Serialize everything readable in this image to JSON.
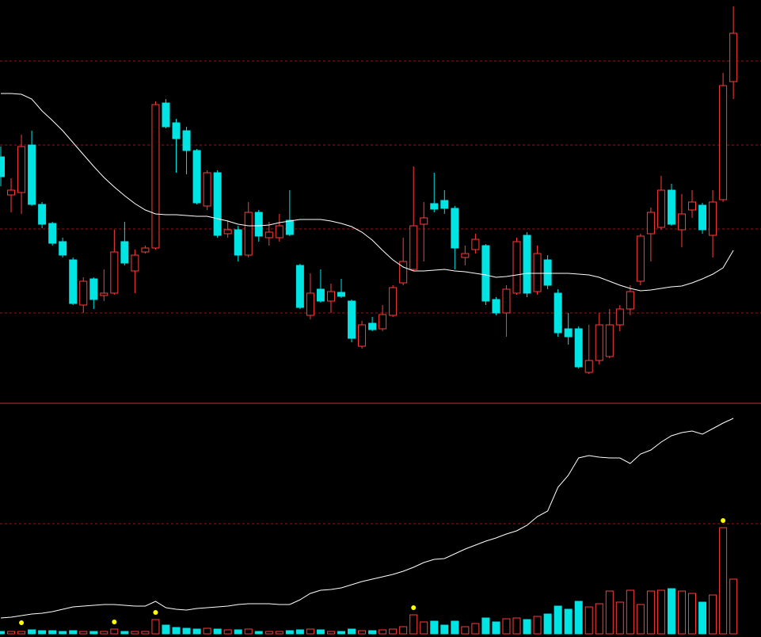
{
  "chart_data": [
    {
      "type": "candlestick",
      "open": [
        310,
        262,
        265,
        325,
        250,
        226,
        203,
        180,
        123,
        156,
        135,
        138,
        203,
        166,
        190,
        195,
        378,
        353,
        343,
        318,
        248,
        290,
        213,
        218,
        186,
        240,
        208,
        208,
        230,
        173,
        110,
        143,
        128,
        139,
        128,
        71,
        100,
        93,
        110,
        151,
        168,
        225,
        251,
        255,
        245,
        183,
        193,
        198,
        130,
        113,
        138,
        211,
        140,
        180,
        138,
        93,
        93,
        38,
        53,
        58,
        98,
        118,
        153,
        213,
        221,
        268,
        218,
        243,
        249,
        211,
        256,
        405
      ],
      "high": [
        323,
        283,
        338,
        343,
        253,
        228,
        208,
        183,
        158,
        158,
        168,
        218,
        228,
        193,
        198,
        380,
        383,
        358,
        348,
        320,
        293,
        293,
        230,
        223,
        253,
        243,
        228,
        238,
        268,
        175,
        163,
        168,
        150,
        156,
        130,
        103,
        108,
        123,
        148,
        208,
        298,
        253,
        290,
        268,
        248,
        198,
        213,
        200,
        133,
        148,
        208,
        215,
        198,
        186,
        143,
        113,
        96,
        98,
        113,
        118,
        123,
        148,
        213,
        246,
        286,
        276,
        263,
        268,
        252,
        268,
        416,
        500
      ],
      "low": [
        273,
        240,
        238,
        248,
        220,
        198,
        183,
        123,
        113,
        118,
        128,
        136,
        173,
        138,
        188,
        193,
        346,
        290,
        288,
        250,
        243,
        208,
        208,
        178,
        183,
        203,
        198,
        203,
        210,
        118,
        105,
        126,
        113,
        132,
        76,
        68,
        90,
        90,
        108,
        148,
        166,
        178,
        240,
        238,
        168,
        173,
        188,
        123,
        110,
        83,
        136,
        133,
        136,
        143,
        83,
        73,
        43,
        36,
        48,
        56,
        90,
        110,
        148,
        178,
        218,
        223,
        196,
        233,
        213,
        183,
        253,
        383
      ],
      "close": [
        285,
        268,
        323,
        250,
        225,
        201,
        186,
        125,
        153,
        130,
        138,
        190,
        176,
        186,
        195,
        376,
        348,
        333,
        318,
        252,
        290,
        211,
        218,
        186,
        240,
        210,
        215,
        223,
        212,
        120,
        138,
        128,
        140,
        134,
        81,
        98,
        92,
        111,
        145,
        178,
        223,
        233,
        244,
        245,
        195,
        188,
        206,
        128,
        113,
        143,
        203,
        138,
        188,
        148,
        88,
        83,
        45,
        53,
        98,
        98,
        118,
        140,
        210,
        240,
        268,
        225,
        238,
        253,
        218,
        253,
        400,
        466
      ],
      "up_color": "#ff3c3c",
      "down_color": "#00e4e4",
      "ma": {
        "color": "#ffffff",
        "values": [
          390,
          390,
          389,
          383,
          368,
          356,
          343,
          328,
          313,
          298,
          284,
          272,
          261,
          251,
          243,
          238,
          237,
          237,
          236,
          235,
          235,
          232,
          229,
          225,
          223,
          223,
          224,
          227,
          229,
          231,
          231,
          231,
          229,
          226,
          222,
          215,
          205,
          192,
          180,
          171,
          166,
          166,
          167,
          168,
          166,
          165,
          163,
          161,
          158,
          159,
          161,
          163,
          163,
          163,
          163,
          163,
          162,
          161,
          158,
          153,
          148,
          144,
          141,
          142,
          144,
          146,
          147,
          151,
          156,
          162,
          170,
          192
        ]
      },
      "ylim": [
        0,
        508
      ],
      "yticks": [
        113,
        219,
        325,
        431
      ],
      "grid": true,
      "grid_color": "#8b1a1a"
    },
    {
      "type": "volume",
      "values": [
        3,
        3,
        3,
        5,
        4,
        4,
        3,
        4,
        3,
        3,
        3,
        6,
        3,
        3,
        3,
        18,
        11,
        8,
        7,
        6,
        7,
        6,
        5,
        5,
        6,
        3,
        3,
        3,
        4,
        5,
        6,
        5,
        3,
        3,
        6,
        4,
        4,
        5,
        6,
        9,
        24,
        15,
        16,
        11,
        16,
        9,
        13,
        20,
        15,
        19,
        20,
        18,
        22,
        25,
        35,
        31,
        41,
        34,
        38,
        54,
        40,
        55,
        37,
        54,
        55,
        57,
        54,
        51,
        40,
        49,
        134,
        69
      ],
      "up_color": "#ff3c3c",
      "down_color": "#00e4e4",
      "line": {
        "color": "#ffffff",
        "values": [
          20,
          21,
          23,
          25,
          26,
          28,
          31,
          34,
          35,
          36,
          37,
          37,
          36,
          35,
          35,
          41,
          33,
          31,
          30,
          32,
          33,
          34,
          35,
          37,
          38,
          38,
          38,
          37,
          37,
          43,
          51,
          55,
          56,
          58,
          62,
          66,
          69,
          72,
          75,
          79,
          84,
          90,
          94,
          95,
          101,
          107,
          112,
          117,
          121,
          126,
          130,
          137,
          148,
          155,
          185,
          200,
          222,
          225,
          223,
          222,
          222,
          215,
          227,
          232,
          242,
          250,
          254,
          256,
          252,
          259,
          266,
          272
        ]
      },
      "dots": {
        "color": "#ffff00",
        "values": [
          null,
          null,
          14,
          null,
          null,
          null,
          null,
          null,
          null,
          null,
          null,
          15,
          null,
          null,
          null,
          27,
          null,
          null,
          null,
          null,
          null,
          null,
          null,
          null,
          null,
          null,
          null,
          null,
          null,
          null,
          null,
          null,
          null,
          null,
          null,
          null,
          null,
          null,
          null,
          null,
          33,
          null,
          null,
          null,
          null,
          null,
          null,
          null,
          null,
          null,
          null,
          null,
          null,
          null,
          null,
          null,
          null,
          null,
          null,
          null,
          null,
          null,
          null,
          null,
          null,
          null,
          null,
          null,
          null,
          null,
          143,
          null
        ]
      },
      "ylim": [
        0,
        290
      ],
      "yticks": [
        139
      ],
      "grid": true,
      "grid_color": "#8b1a1a"
    }
  ]
}
